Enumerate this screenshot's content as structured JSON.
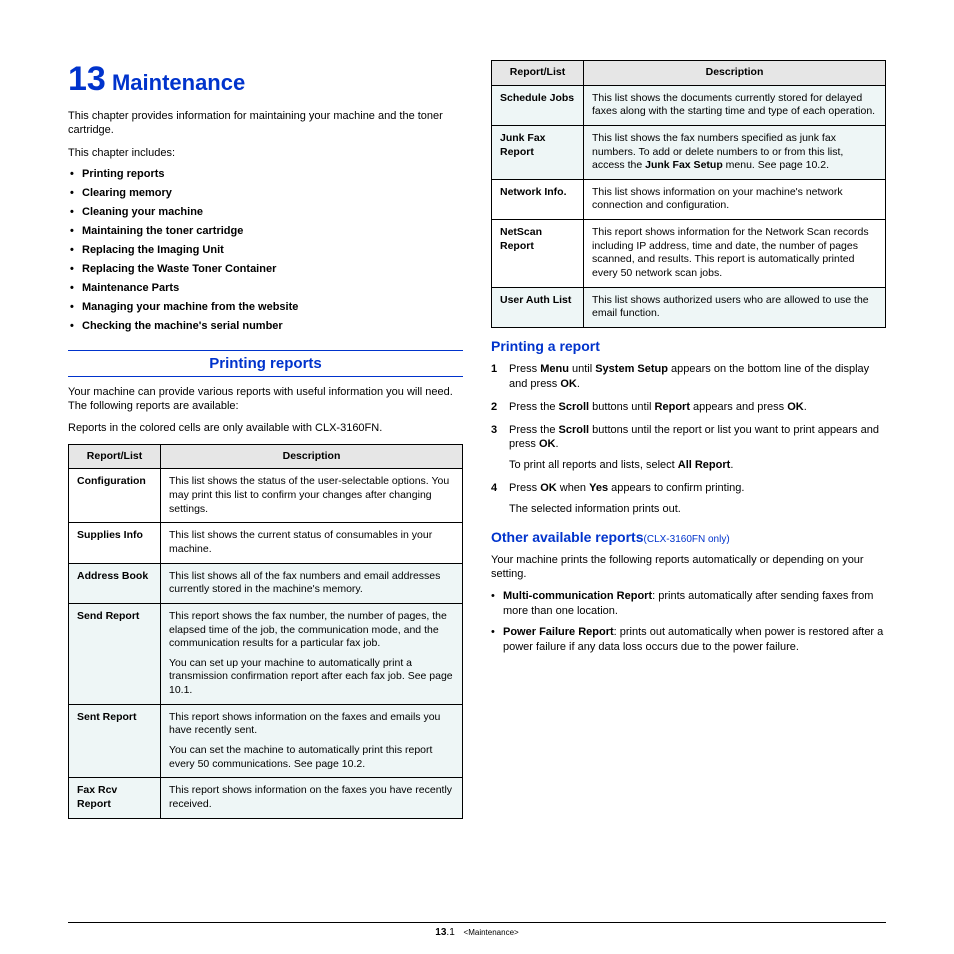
{
  "chapter": {
    "num": "13",
    "title": "Maintenance"
  },
  "intro": "This chapter provides information for maintaining your machine and the toner cartridge.",
  "includes_label": "This chapter includes:",
  "toc": [
    "Printing reports",
    "Clearing memory",
    "Cleaning your machine",
    "Maintaining the toner cartridge",
    "Replacing the Imaging Unit",
    "Replacing the Waste Toner Container",
    "Maintenance Parts",
    "Managing your machine from the website",
    "Checking the machine's serial number"
  ],
  "section1": {
    "title": "Printing reports",
    "p1": "Your machine can provide various reports with useful information you will need. The following reports are available:",
    "p2": "Reports in the colored cells are only available with CLX-3160FN.",
    "th1": "Report/List",
    "th2": "Description"
  },
  "table1": [
    {
      "name": "Configuration",
      "tint": false,
      "desc_a": "This list shows the status of the user-selectable options. You may print this list to confirm your changes after changing settings."
    },
    {
      "name": "Supplies Info",
      "tint": false,
      "desc_a": "This list shows the current status of consumables in your machine."
    },
    {
      "name": "Address Book",
      "tint": true,
      "desc_a": "This list shows all of the fax numbers and email addresses currently stored in the machine's memory."
    },
    {
      "name": "Send Report",
      "tint": true,
      "desc_a": "This report shows the fax number, the number of pages, the elapsed time of the job, the communication mode, and the communication results for a particular fax job.",
      "desc_b": "You can set up your machine to automatically print a transmission confirmation report after each fax job. See page 10.1."
    },
    {
      "name": "Sent Report",
      "tint": true,
      "desc_a": "This report shows information on the faxes and emails you have recently sent.",
      "desc_b": "You can set the machine to automatically print this report every 50 communications. See page 10.2."
    },
    {
      "name": "Fax Rcv Report",
      "tint": true,
      "desc_a": "This report shows information on the faxes you have recently received."
    }
  ],
  "table2": [
    {
      "name": "Schedule Jobs",
      "tint": true,
      "desc_a": "This list shows the documents currently stored for delayed faxes along with the starting time and type of each operation."
    },
    {
      "name": "Junk Fax Report",
      "tint": true,
      "desc_html": "This list shows the fax numbers specified as junk fax numbers. To add or delete numbers to or from this list, access the <b>Junk Fax Setup</b> menu. See page 10.2."
    },
    {
      "name": "Network Info.",
      "tint": false,
      "desc_a": "This list shows information on your machine's network connection and configuration."
    },
    {
      "name": "NetScan Report",
      "tint": false,
      "desc_a": "This report shows information for the Network Scan records including IP address, time and date, the number of pages scanned, and results. This report is automatically printed every 50 network scan jobs."
    },
    {
      "name": "User Auth List",
      "tint": true,
      "desc_a": "This list shows authorized users who are allowed to use the email function."
    }
  ],
  "sub1": {
    "title": "Printing a report",
    "s1_html": "Press <b>Menu</b> until <b>System Setup</b> appears on the bottom line of the display and press <b>OK</b>.",
    "s2_html": "Press the <b>Scroll</b> buttons until <b>Report</b> appears and press <b>OK</b>.",
    "s3_html": "Press the <b>Scroll</b> buttons until the report or list you want to print appears and press <b>OK</b>.",
    "s3b_html": "To print all reports and lists, select <b>All Report</b>.",
    "s4_html": "Press <b>OK</b> when <b>Yes</b> appears to confirm printing.",
    "s4b": "The selected information prints out."
  },
  "sub2": {
    "title": "Other available reports",
    "note": "(CLX-3160FN only)",
    "intro": "Your machine prints the following reports automatically or depending on your setting.",
    "b1_html": "<b>Multi-communication Report</b>: prints automatically after sending faxes from more than one location.",
    "b2_html": "<b>Power Failure Report</b>: prints out automatically when power is restored after a power failure if any data loss occurs due to the power failure."
  },
  "footer": {
    "pg_bold": "13",
    "pg_rest": ".1",
    "crumb": "<Maintenance>"
  }
}
